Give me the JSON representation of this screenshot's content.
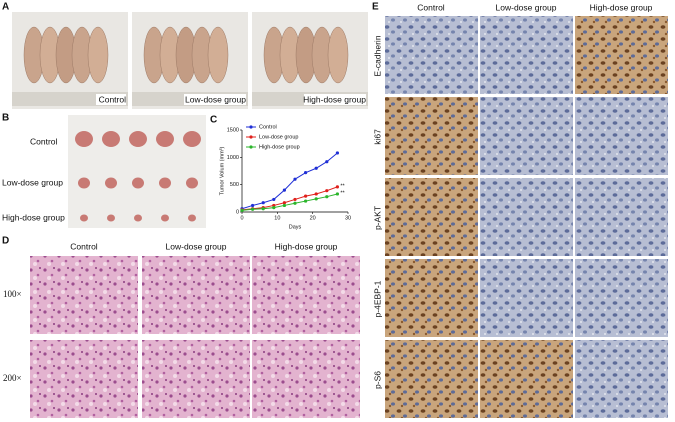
{
  "panels": {
    "a": {
      "label": "A",
      "groups": [
        "Control",
        "Low-dose group",
        "High-dose group"
      ]
    },
    "b": {
      "label": "B",
      "rows": [
        "Control",
        "Low-dose group",
        "High-dose group"
      ]
    },
    "c": {
      "label": "C"
    },
    "d": {
      "label": "D",
      "columns": [
        "Control",
        "Low-dose group",
        "High-dose group"
      ],
      "rows": [
        "100×",
        "200×"
      ]
    },
    "e": {
      "label": "E",
      "columns": [
        "Control",
        "Low-dose group",
        "High-dose group"
      ],
      "rows": [
        "E-cadherin",
        "ki67",
        "p-AKT",
        "p-4EBP-1",
        "p-S6"
      ]
    }
  },
  "chart_data": {
    "type": "line",
    "x_label": "Days",
    "y_label": "Tumor Volum (mm³)",
    "x": [
      0,
      3,
      6,
      9,
      12,
      15,
      18,
      21,
      24,
      27
    ],
    "series": [
      {
        "name": "Control",
        "color": "#1f2fd6",
        "values": [
          60,
          120,
          170,
          230,
          400,
          600,
          720,
          800,
          920,
          1080
        ]
      },
      {
        "name": "Low-dose group",
        "color": "#e0201b",
        "values": [
          40,
          60,
          80,
          120,
          170,
          230,
          290,
          330,
          390,
          460
        ]
      },
      {
        "name": "High-dose group",
        "color": "#2bb52b",
        "values": [
          30,
          50,
          60,
          80,
          120,
          160,
          200,
          240,
          280,
          330
        ]
      }
    ],
    "annotations": [
      "**",
      "**"
    ],
    "xlim": [
      0,
      30
    ],
    "ylim": [
      0,
      1500
    ],
    "xticks": [
      0,
      10,
      20,
      30
    ],
    "yticks": [
      0,
      500,
      1000,
      1500
    ]
  }
}
